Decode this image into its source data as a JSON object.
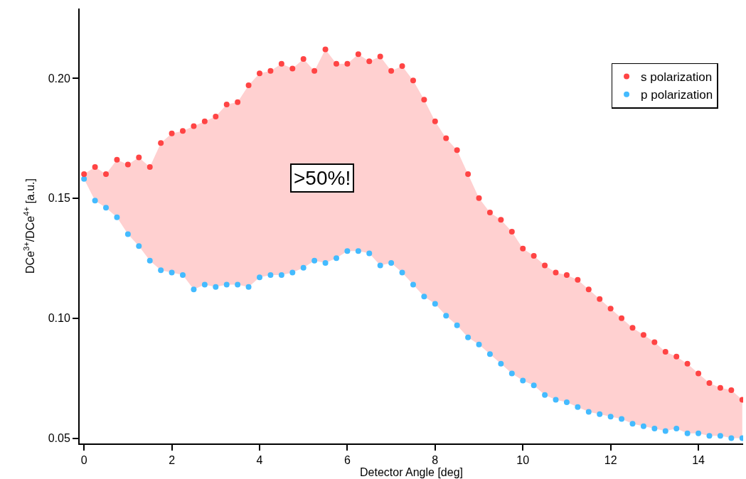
{
  "chart_data": {
    "type": "scatter",
    "xlabel": "Detector Angle [deg]",
    "ylabel": "DCe$^{3+}$/DCe$^{4+}$ [a.u.]",
    "annotations": [
      ">50%!"
    ],
    "x": [
      0,
      0.25,
      0.5,
      0.75,
      1,
      1.25,
      1.5,
      1.75,
      2,
      2.25,
      2.5,
      2.75,
      3,
      3.25,
      3.5,
      3.75,
      4,
      4.25,
      4.5,
      4.75,
      5,
      5.25,
      5.5,
      5.75,
      6,
      6.25,
      6.5,
      6.75,
      7,
      7.25,
      7.5,
      7.75,
      8,
      8.25,
      8.5,
      8.75,
      9,
      9.25,
      9.5,
      9.75,
      10,
      10.25,
      10.5,
      10.75,
      11,
      11.25,
      11.5,
      11.75,
      12,
      12.25,
      12.5,
      12.75,
      13,
      13.25,
      13.5,
      13.75,
      14,
      14.25,
      14.5,
      14.75,
      15
    ],
    "series": [
      {
        "name": "p polarization",
        "color": "#44bbff",
        "values": [
          0.158,
          0.149,
          0.146,
          0.142,
          0.135,
          0.13,
          0.124,
          0.12,
          0.119,
          0.118,
          0.112,
          0.114,
          0.113,
          0.114,
          0.114,
          0.113,
          0.117,
          0.118,
          0.118,
          0.119,
          0.121,
          0.124,
          0.123,
          0.125,
          0.128,
          0.128,
          0.127,
          0.122,
          0.123,
          0.119,
          0.114,
          0.109,
          0.106,
          0.101,
          0.097,
          0.092,
          0.089,
          0.085,
          0.081,
          0.077,
          0.074,
          0.072,
          0.068,
          0.066,
          0.065,
          0.063,
          0.061,
          0.06,
          0.059,
          0.058,
          0.056,
          0.055,
          0.054,
          0.053,
          0.054,
          0.052,
          0.052,
          0.051,
          0.051,
          0.05,
          0.05
        ]
      },
      {
        "name": "s polarization",
        "color": "#ff4444",
        "values": [
          0.16,
          0.163,
          0.16,
          0.166,
          0.164,
          0.167,
          0.163,
          0.173,
          0.177,
          0.178,
          0.18,
          0.182,
          0.184,
          0.189,
          0.19,
          0.197,
          0.202,
          0.203,
          0.206,
          0.204,
          0.208,
          0.203,
          0.212,
          0.206,
          0.206,
          0.21,
          0.207,
          0.209,
          0.203,
          0.205,
          0.199,
          0.191,
          0.182,
          0.175,
          0.17,
          0.16,
          0.15,
          0.144,
          0.141,
          0.136,
          0.129,
          0.126,
          0.122,
          0.119,
          0.118,
          0.116,
          0.112,
          0.108,
          0.104,
          0.1,
          0.096,
          0.093,
          0.09,
          0.086,
          0.084,
          0.081,
          0.077,
          0.073,
          0.071,
          0.07,
          0.066
        ],
        "lower": [
          0.158,
          0.149,
          0.146,
          0.142,
          0.135,
          0.13,
          0.124,
          0.12,
          0.119,
          0.118,
          0.112,
          0.114,
          0.113,
          0.114,
          0.114,
          0.113,
          0.117,
          0.118,
          0.118,
          0.119,
          0.121,
          0.124,
          0.123,
          0.125,
          0.128,
          0.128,
          0.127,
          0.122,
          0.123,
          0.119,
          0.114,
          0.109,
          0.106,
          0.101,
          0.097,
          0.092,
          0.089,
          0.085,
          0.081,
          0.077,
          0.074,
          0.072,
          0.068,
          0.066,
          0.065,
          0.063,
          0.061,
          0.06,
          0.059,
          0.058,
          0.056,
          0.055,
          0.054,
          0.053,
          0.054,
          0.052,
          0.052,
          0.051,
          0.051,
          0.05,
          0.05
        ],
        "upper": [
          0.16,
          0.163,
          0.16,
          0.166,
          0.164,
          0.167,
          0.163,
          0.173,
          0.177,
          0.178,
          0.18,
          0.182,
          0.184,
          0.189,
          0.19,
          0.197,
          0.202,
          0.203,
          0.206,
          0.204,
          0.208,
          0.203,
          0.212,
          0.206,
          0.206,
          0.21,
          0.207,
          0.209,
          0.203,
          0.205,
          0.199,
          0.191,
          0.182,
          0.175,
          0.17,
          0.16,
          0.15,
          0.144,
          0.141,
          0.136,
          0.129,
          0.126,
          0.122,
          0.119,
          0.118,
          0.116,
          0.112,
          0.108,
          0.104,
          0.1,
          0.096,
          0.093,
          0.09,
          0.086,
          0.084,
          0.081,
          0.077,
          0.073,
          0.071,
          0.07,
          0.066
        ]
      }
    ],
    "xlim": [
      -0.1,
      15.02
    ],
    "ylim": [
      0.0478,
      0.229
    ],
    "xticks": [
      0,
      2,
      4,
      6,
      8,
      10,
      12,
      14
    ],
    "yticks": [
      {
        "value": 0.05,
        "label": "0.05"
      },
      {
        "value": 0.1,
        "label": "0.10"
      },
      {
        "value": 0.15,
        "label": "0.15"
      },
      {
        "value": 0.2,
        "label": "0.20"
      }
    ],
    "legend": "top right",
    "marker": "circle"
  }
}
